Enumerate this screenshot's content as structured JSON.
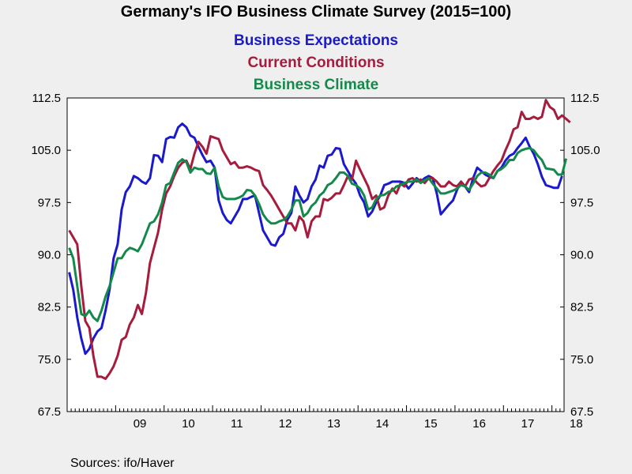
{
  "chart_data": {
    "type": "line",
    "title": "Germany's IFO Business Climate Survey (2015=100)",
    "source": "Sources:  ifo/Haver",
    "x_range": [
      "2008-01",
      "2018-03"
    ],
    "x_tick_labels": [
      "09",
      "10",
      "11",
      "12",
      "13",
      "14",
      "15",
      "16",
      "17",
      "18"
    ],
    "y_ticks": [
      "67.5",
      "75.0",
      "82.5",
      "90.0",
      "97.5",
      "105.0",
      "112.5"
    ],
    "ylim": [
      67.5,
      112.5
    ],
    "grid": false,
    "legend_position": "top-center",
    "series": [
      {
        "name": "Business Expectations",
        "color": "#1a1acc",
        "values": [
          87.5,
          85,
          81,
          78,
          75.8,
          76.5,
          78,
          79,
          79.5,
          82,
          85,
          89.5,
          91.5,
          96.5,
          99,
          99.8,
          101.3,
          101,
          100.5,
          100.2,
          101,
          104.3,
          104.2,
          103.3,
          106.6,
          106.9,
          106.8,
          108.3,
          108.8,
          108.3,
          107.1,
          106.8,
          105.5,
          104.3,
          103.3,
          103.5,
          102.5,
          97.8,
          96,
          95,
          94.5,
          95.5,
          96.5,
          98,
          98,
          98.3,
          98.5,
          96,
          93.5,
          92.5,
          91.5,
          91.3,
          92.5,
          93,
          95,
          96,
          99.8,
          98.5,
          97.5,
          98,
          99.8,
          100.8,
          102.8,
          102.5,
          104.2,
          104.4,
          105.3,
          105.2,
          103,
          102,
          101,
          100.2,
          98.5,
          97.5,
          95.5,
          96.2,
          97.5,
          98.5,
          100,
          100.2,
          100.5,
          100.5,
          100.5,
          100.3,
          99.5,
          100.2,
          101,
          100.5,
          101,
          101.3,
          101,
          98.8,
          95.8,
          96.5,
          97.2,
          97.8,
          99.3,
          100.5,
          99.8,
          99,
          101,
          102.5,
          102,
          101.5,
          101.2,
          101,
          102,
          102.5,
          103.5,
          104.2,
          104.5,
          105.3,
          106,
          106.8,
          105.5,
          104.5,
          103,
          101.2,
          100,
          99.8,
          99.6,
          99.6,
          101.3
        ]
      },
      {
        "name": "Current Conditions",
        "color": "#a51c3c",
        "values": [
          93.5,
          92.5,
          91.5,
          85.5,
          80.5,
          79.5,
          75.5,
          72.5,
          72.5,
          72.2,
          73,
          74,
          75.5,
          77.8,
          78.2,
          80,
          81,
          82.8,
          81.5,
          84.5,
          88.8,
          91,
          93.2,
          96.5,
          98.8,
          99.8,
          101.3,
          102.5,
          103.2,
          103.5,
          102.3,
          104.5,
          106.2,
          105.5,
          104.5,
          107,
          106.8,
          106.6,
          105,
          104,
          103,
          103.3,
          102.5,
          102.5,
          102.7,
          102.5,
          102.2,
          102,
          100,
          99.3,
          98.5,
          97.5,
          96.5,
          95.5,
          94.5,
          94.5,
          93.5,
          95.5,
          94.8,
          92.5,
          94.8,
          95.5,
          95.5,
          98,
          97.8,
          98.2,
          98.8,
          98.8,
          100,
          101.3,
          100.8,
          103.5,
          102.2,
          101,
          99.8,
          98,
          98.5,
          96.5,
          96.8,
          98.5,
          99.5,
          98.8,
          100.2,
          99.8,
          100.8,
          101,
          100.5,
          100.8,
          100.3,
          101,
          101,
          100.5,
          99.8,
          99.8,
          100.5,
          100,
          99.8,
          100.5,
          99.8,
          100.8,
          101,
          100.3,
          99.8,
          100,
          101,
          102,
          102.8,
          103.5,
          105,
          106.3,
          108,
          108.3,
          110.5,
          109.5,
          109.5,
          109.8,
          109.5,
          109.8,
          112.2,
          111.2,
          110.8,
          109.5,
          110,
          109.5,
          109
        ]
      },
      {
        "name": "Business Climate",
        "color": "#138a4c",
        "values": [
          91,
          89.5,
          85.5,
          81.5,
          81.2,
          82,
          81,
          80.5,
          82,
          84,
          85.5,
          87.5,
          89.5,
          89.5,
          90.5,
          91,
          90.8,
          90.5,
          91.5,
          93,
          94.5,
          94.8,
          95.8,
          97.5,
          100,
          100.3,
          101.8,
          103.2,
          103.7,
          103.3,
          101.8,
          102.5,
          102.3,
          102.3,
          101.7,
          101.6,
          102.5,
          99.8,
          98.3,
          98,
          98,
          98,
          98.2,
          98.5,
          99.3,
          99.2,
          98.5,
          97.3,
          95.8,
          95,
          94.5,
          94.5,
          94.8,
          95,
          95.5,
          96.5,
          97.8,
          97.8,
          95.5,
          96,
          97,
          97.5,
          98.5,
          99,
          100,
          100.3,
          101,
          101.8,
          101.8,
          101.3,
          100.2,
          100,
          99.5,
          98.5,
          96.5,
          96.8,
          98,
          98.5,
          98.6,
          99,
          99.2,
          99.8,
          100,
          100.3,
          100.5,
          100.5,
          100.8,
          100.3,
          100.7,
          101,
          100.2,
          99.5,
          98.8,
          98.8,
          99,
          99.2,
          99.5,
          100,
          99.8,
          99.3,
          100.2,
          101.3,
          101.8,
          101.8,
          101.5,
          101,
          102,
          102.3,
          102.8,
          103.6,
          103.6,
          104.6,
          105,
          105.2,
          105.3,
          105,
          104.2,
          103.6,
          102.4,
          102.3,
          102.2,
          101.5,
          101.5,
          103.8
        ]
      }
    ]
  }
}
